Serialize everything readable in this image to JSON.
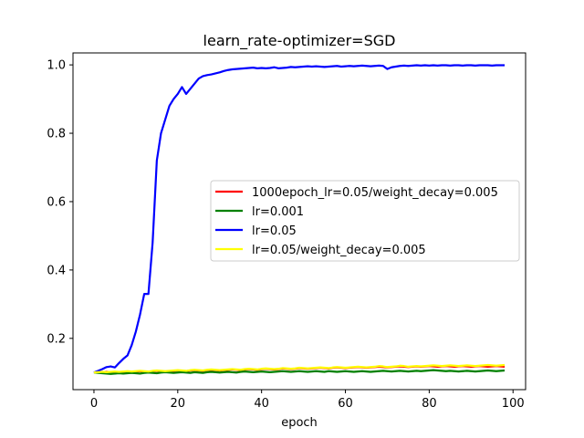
{
  "chart_data": {
    "type": "line",
    "title": "learn_rate-optimizer=SGD",
    "xlabel": "epoch",
    "ylabel": "",
    "xlim": [
      -5,
      103
    ],
    "ylim": [
      0.05,
      1.035
    ],
    "xticks": [
      0,
      20,
      40,
      60,
      80,
      100
    ],
    "yticks": [
      0.2,
      0.4,
      0.6,
      0.8,
      1.0
    ],
    "xtick_labels": [
      "0",
      "20",
      "40",
      "60",
      "80",
      "100"
    ],
    "ytick_labels": [
      "0.2",
      "0.4",
      "0.6",
      "0.8",
      "1.0"
    ],
    "legend_position": "center-right",
    "grid": false,
    "series": [
      {
        "name": "1000epoch_lr=0.05/weight_decay=0.005",
        "color": "#ff0000",
        "x_start": 0,
        "values": [
          0.1,
          0.1,
          0.101,
          0.102,
          0.101,
          0.102,
          0.101,
          0.102,
          0.103,
          0.102,
          0.103,
          0.104,
          0.103,
          0.102,
          0.104,
          0.105,
          0.104,
          0.103,
          0.104,
          0.105,
          0.106,
          0.105,
          0.104,
          0.106,
          0.107,
          0.106,
          0.105,
          0.107,
          0.108,
          0.107,
          0.106,
          0.107,
          0.108,
          0.109,
          0.108,
          0.107,
          0.109,
          0.11,
          0.109,
          0.108,
          0.11,
          0.111,
          0.11,
          0.109,
          0.11,
          0.112,
          0.111,
          0.11,
          0.111,
          0.113,
          0.112,
          0.111,
          0.112,
          0.113,
          0.114,
          0.113,
          0.112,
          0.114,
          0.115,
          0.114,
          0.113,
          0.114,
          0.115,
          0.116,
          0.115,
          0.114,
          0.115,
          0.116,
          0.117,
          0.116,
          0.115,
          0.116,
          0.117,
          0.118,
          0.117,
          0.116,
          0.117,
          0.118,
          0.117,
          0.118,
          0.119,
          0.118,
          0.117,
          0.118,
          0.119,
          0.118,
          0.117,
          0.118,
          0.119,
          0.118,
          0.117,
          0.118,
          0.119,
          0.118,
          0.117,
          0.118,
          0.119,
          0.118,
          0.117
        ]
      },
      {
        "name": "lr=0.001",
        "color": "#008000",
        "x_start": 0,
        "values": [
          0.1,
          0.099,
          0.098,
          0.097,
          0.096,
          0.097,
          0.098,
          0.097,
          0.098,
          0.099,
          0.098,
          0.097,
          0.099,
          0.1,
          0.099,
          0.098,
          0.1,
          0.101,
          0.1,
          0.099,
          0.1,
          0.101,
          0.1,
          0.099,
          0.101,
          0.1,
          0.099,
          0.101,
          0.102,
          0.101,
          0.1,
          0.101,
          0.102,
          0.101,
          0.1,
          0.102,
          0.103,
          0.102,
          0.101,
          0.102,
          0.103,
          0.102,
          0.101,
          0.102,
          0.103,
          0.104,
          0.103,
          0.102,
          0.103,
          0.104,
          0.103,
          0.102,
          0.103,
          0.104,
          0.103,
          0.102,
          0.104,
          0.103,
          0.102,
          0.103,
          0.104,
          0.103,
          0.102,
          0.103,
          0.104,
          0.103,
          0.102,
          0.103,
          0.104,
          0.105,
          0.104,
          0.103,
          0.104,
          0.105,
          0.104,
          0.103,
          0.104,
          0.105,
          0.104,
          0.105,
          0.106,
          0.107,
          0.106,
          0.105,
          0.104,
          0.105,
          0.104,
          0.103,
          0.104,
          0.105,
          0.104,
          0.103,
          0.104,
          0.105,
          0.106,
          0.105,
          0.104,
          0.105,
          0.106
        ]
      },
      {
        "name": "lr=0.05",
        "color": "#0000ff",
        "x_start": 0,
        "values": [
          0.1,
          0.105,
          0.11,
          0.116,
          0.118,
          0.115,
          0.128,
          0.14,
          0.15,
          0.18,
          0.22,
          0.27,
          0.33,
          0.33,
          0.48,
          0.72,
          0.8,
          0.84,
          0.88,
          0.9,
          0.915,
          0.935,
          0.915,
          0.93,
          0.945,
          0.96,
          0.967,
          0.97,
          0.972,
          0.975,
          0.978,
          0.982,
          0.985,
          0.987,
          0.988,
          0.989,
          0.99,
          0.991,
          0.992,
          0.99,
          0.991,
          0.99,
          0.991,
          0.993,
          0.99,
          0.991,
          0.992,
          0.994,
          0.993,
          0.994,
          0.995,
          0.996,
          0.995,
          0.996,
          0.995,
          0.994,
          0.995,
          0.996,
          0.997,
          0.995,
          0.996,
          0.997,
          0.996,
          0.997,
          0.998,
          0.997,
          0.996,
          0.997,
          0.998,
          0.997,
          0.988,
          0.993,
          0.995,
          0.997,
          0.998,
          0.997,
          0.998,
          0.999,
          0.998,
          0.999,
          0.998,
          0.999,
          0.998,
          0.999,
          0.999,
          0.998,
          0.999,
          0.999,
          0.998,
          0.999,
          0.999,
          0.998,
          0.999,
          0.999,
          0.999,
          0.998,
          0.999,
          0.999,
          0.999
        ]
      },
      {
        "name": "lr=0.05/weight_decay=0.005",
        "color": "#ffff00",
        "x_start": 0,
        "values": [
          0.1,
          0.101,
          0.102,
          0.101,
          0.102,
          0.103,
          0.102,
          0.103,
          0.104,
          0.103,
          0.104,
          0.105,
          0.104,
          0.103,
          0.105,
          0.106,
          0.105,
          0.104,
          0.105,
          0.106,
          0.107,
          0.106,
          0.105,
          0.107,
          0.108,
          0.107,
          0.106,
          0.108,
          0.109,
          0.108,
          0.107,
          0.108,
          0.109,
          0.11,
          0.109,
          0.108,
          0.11,
          0.111,
          0.11,
          0.109,
          0.111,
          0.112,
          0.111,
          0.11,
          0.111,
          0.113,
          0.112,
          0.111,
          0.112,
          0.114,
          0.113,
          0.112,
          0.113,
          0.114,
          0.115,
          0.114,
          0.113,
          0.115,
          0.116,
          0.115,
          0.114,
          0.115,
          0.116,
          0.117,
          0.116,
          0.115,
          0.116,
          0.117,
          0.119,
          0.118,
          0.116,
          0.117,
          0.118,
          0.12,
          0.119,
          0.117,
          0.118,
          0.119,
          0.118,
          0.119,
          0.12,
          0.121,
          0.12,
          0.119,
          0.12,
          0.121,
          0.12,
          0.119,
          0.12,
          0.121,
          0.12,
          0.119,
          0.12,
          0.121,
          0.122,
          0.121,
          0.12,
          0.121,
          0.122
        ]
      }
    ]
  }
}
